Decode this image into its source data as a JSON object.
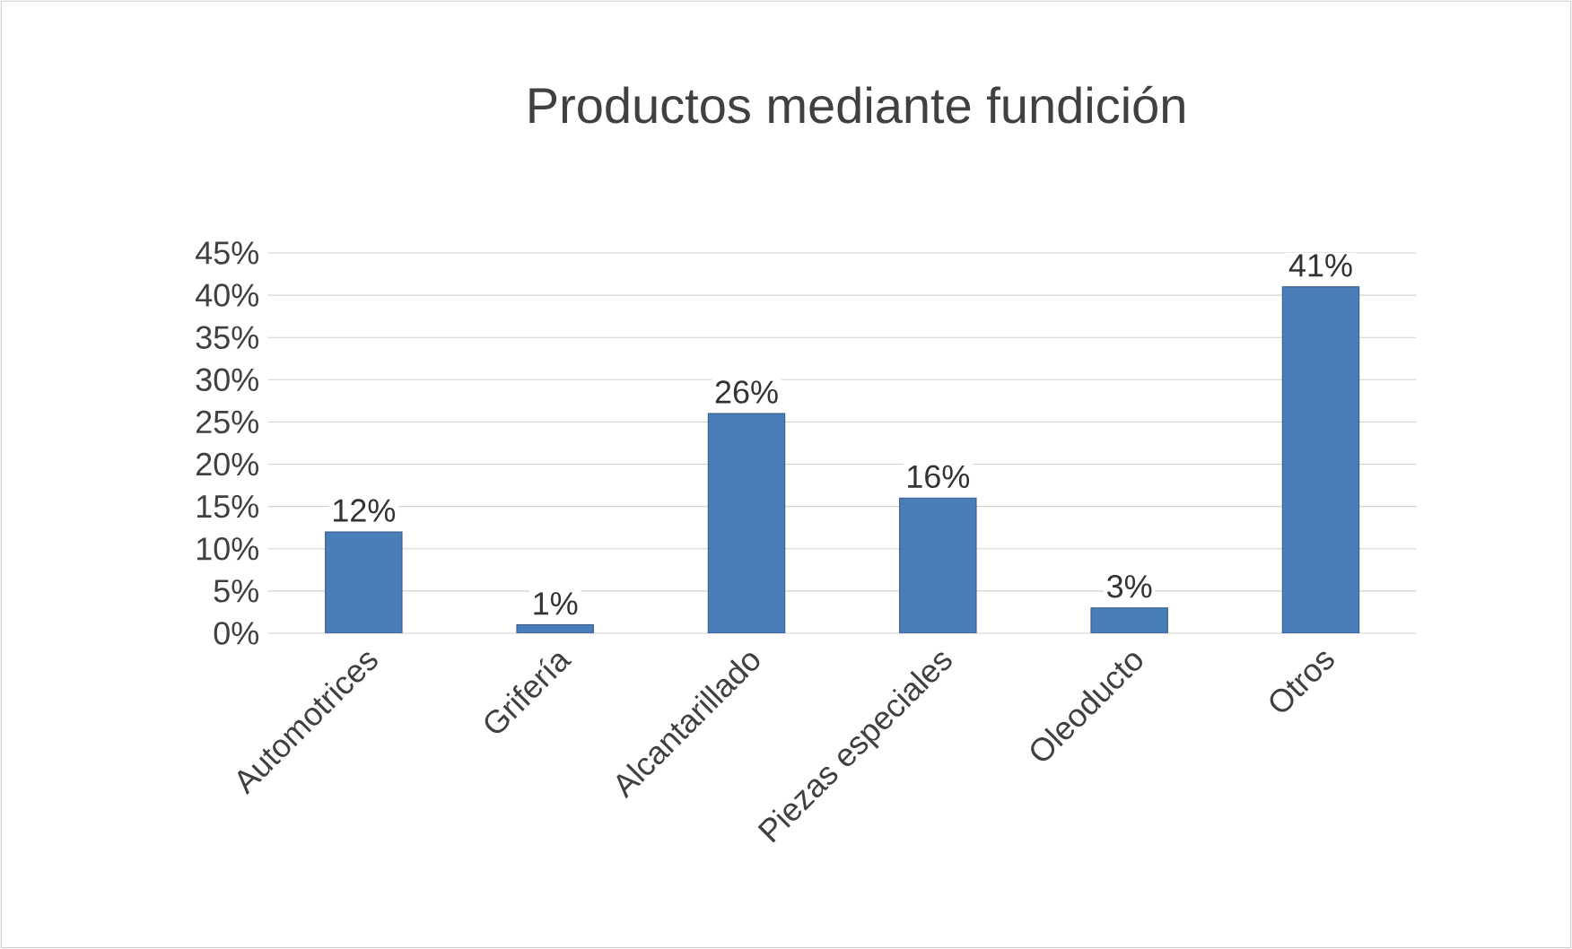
{
  "chart_data": {
    "type": "bar",
    "title": "Productos mediante fundición",
    "categories": [
      "Automotrices",
      "Grifería",
      "Alcantarillado",
      "Piezas especiales",
      "Oleoducto",
      "Otros"
    ],
    "values": [
      12,
      1,
      26,
      16,
      3,
      41
    ],
    "value_labels": [
      "12%",
      "1%",
      "26%",
      "16%",
      "3%",
      "41%"
    ],
    "color": "#4a7ebb",
    "ylim": [
      0,
      45
    ],
    "yticks": [
      {
        "value": 0,
        "label": "0%"
      },
      {
        "value": 5,
        "label": "5%"
      },
      {
        "value": 10,
        "label": "10%"
      },
      {
        "value": 15,
        "label": "15%"
      },
      {
        "value": 20,
        "label": "20%"
      },
      {
        "value": 25,
        "label": "25%"
      },
      {
        "value": 30,
        "label": "30%"
      },
      {
        "value": 35,
        "label": "35%"
      },
      {
        "value": 40,
        "label": "40%"
      },
      {
        "value": 45,
        "label": "45%"
      }
    ],
    "grid": "y"
  }
}
